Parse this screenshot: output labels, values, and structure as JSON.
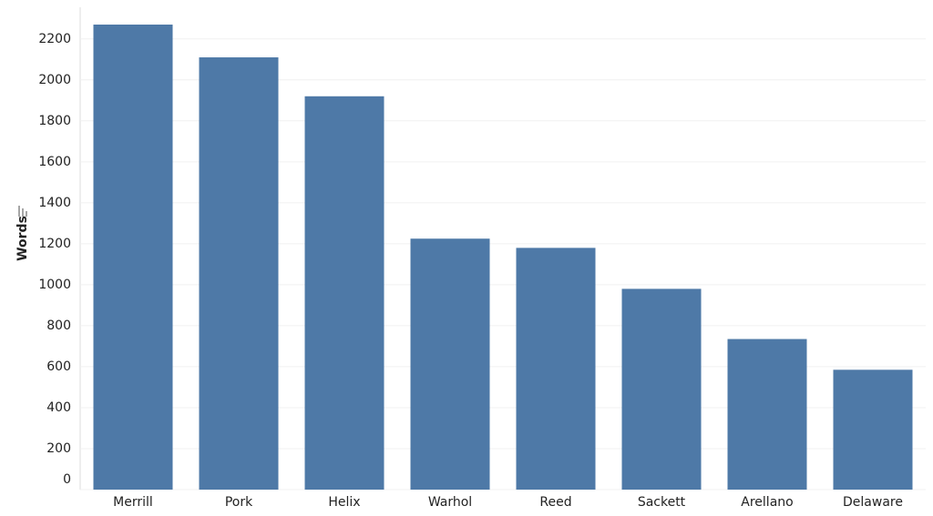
{
  "chart_data": {
    "type": "bar",
    "y_label": "Words",
    "categories": [
      "Merrill",
      "Pork",
      "Helix",
      "Warhol",
      "Reed",
      "Sackett",
      "Arellano",
      "Delaware"
    ],
    "values": [
      2270,
      2110,
      1920,
      1225,
      1180,
      980,
      735,
      585
    ],
    "color": "#4e79a7",
    "ylim": [
      0,
      2350
    ],
    "yticks": [
      0,
      200,
      400,
      600,
      800,
      1000,
      1200,
      1400,
      1600,
      1800,
      2000,
      2200
    ],
    "grid": true
  }
}
